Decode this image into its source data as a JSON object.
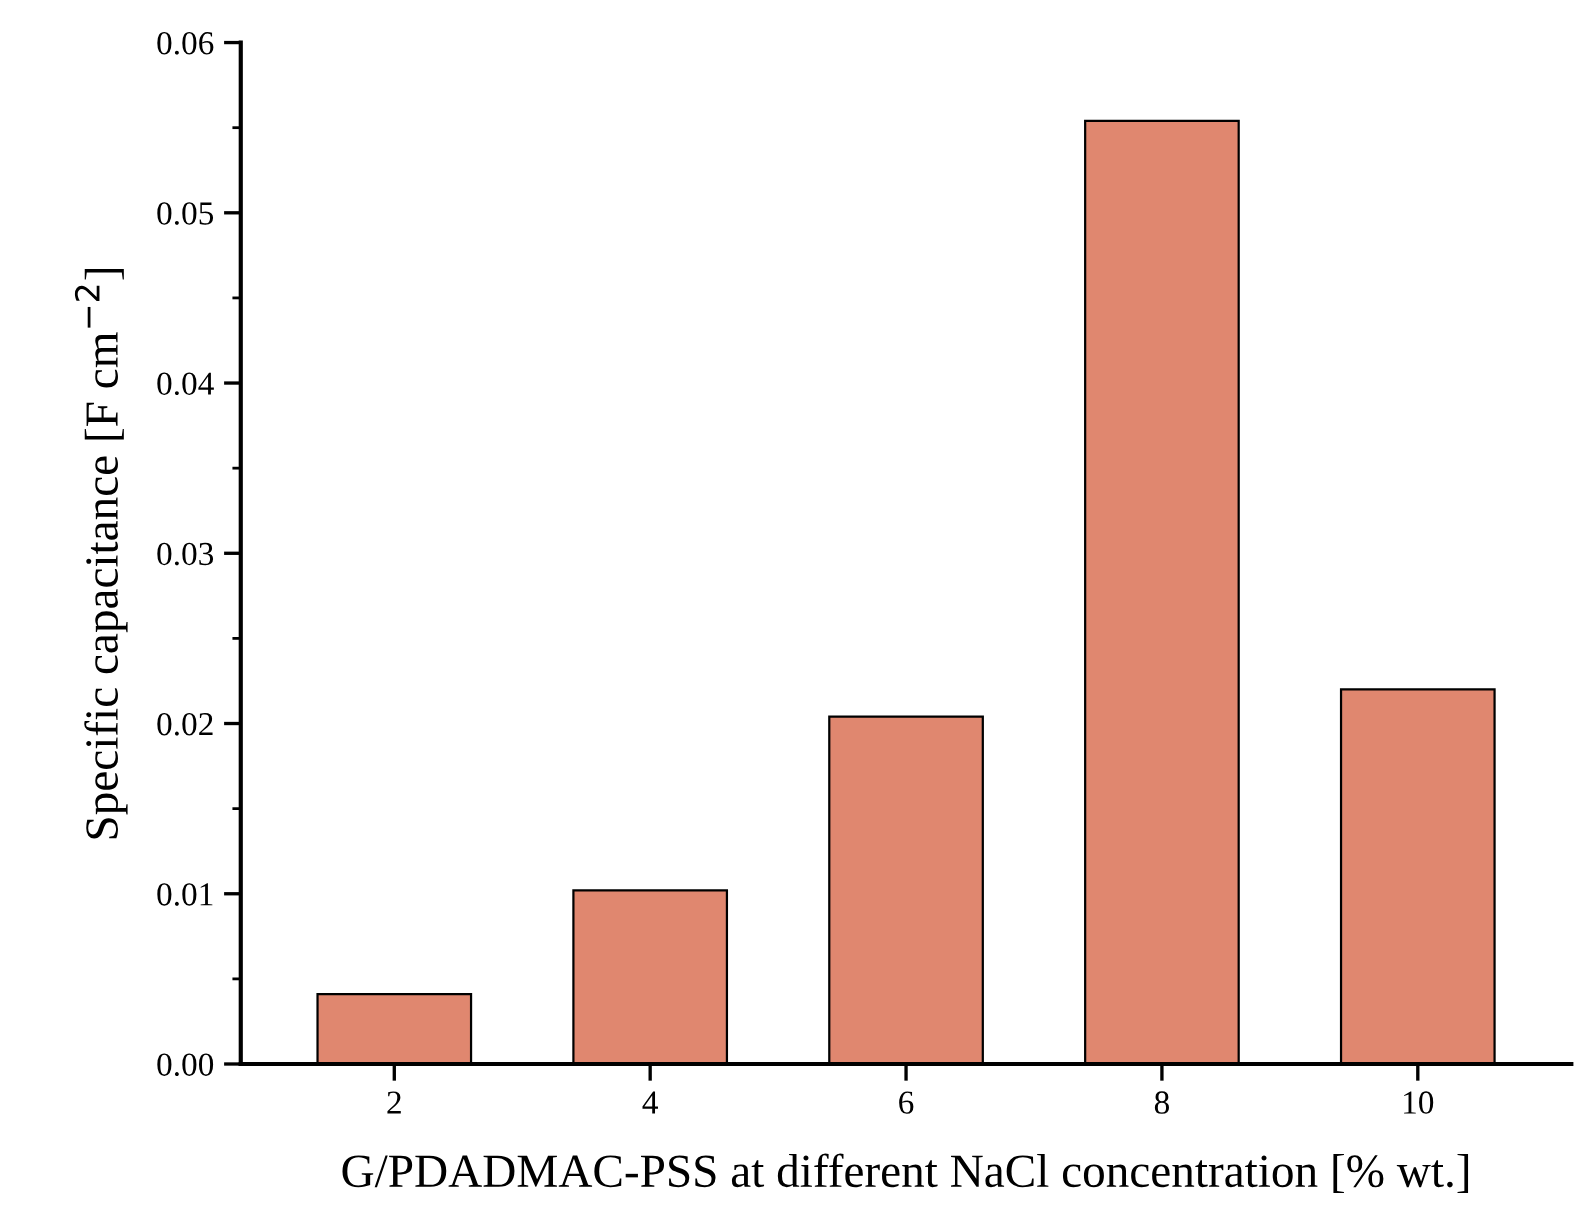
{
  "chart_data": {
    "type": "bar",
    "xlabel": "G/PDADMAC-PSS at different NaCl concentration [% wt.]",
    "ylabel": "Specific capacitance [F cm$^{−2}$]",
    "categories": [
      "2",
      "4",
      "6",
      "8",
      "10"
    ],
    "values": [
      0.0041,
      0.0102,
      0.0204,
      0.0554,
      0.022
    ],
    "color": "#e0876f",
    "ylim": [
      0,
      0.06
    ],
    "yticks": [
      {
        "value": 0,
        "label": "0.00"
      },
      {
        "value": 0.005,
        "label": null
      },
      {
        "value": 0.01,
        "label": "0.01"
      },
      {
        "value": 0.015,
        "label": null
      },
      {
        "value": 0.02,
        "label": "0.02"
      },
      {
        "value": 0.025,
        "label": null
      },
      {
        "value": 0.03,
        "label": "0.03"
      },
      {
        "value": 0.035,
        "label": null
      },
      {
        "value": 0.04,
        "label": "0.04"
      },
      {
        "value": 0.045,
        "label": null
      },
      {
        "value": 0.05,
        "label": "0.05"
      },
      {
        "value": 0.055,
        "label": null
      },
      {
        "value": 0.06,
        "label": "0.06"
      }
    ],
    "grid": false,
    "legend": false
  }
}
